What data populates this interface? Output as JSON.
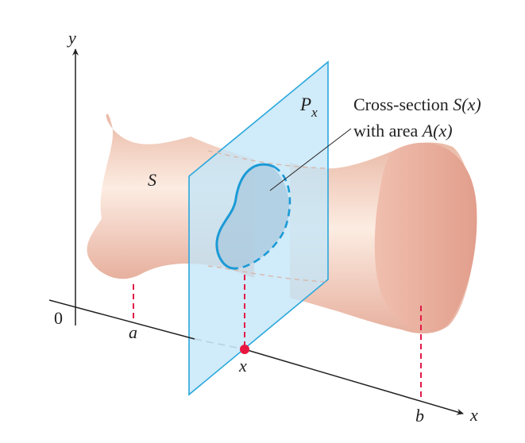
{
  "labels": {
    "y_axis": "y",
    "x_axis": "x",
    "origin": "0",
    "solid": "S",
    "a": "a",
    "b": "b",
    "x_point": "x",
    "plane_P": "P",
    "plane_sub": "x",
    "callout_line1_text": "Cross-section ",
    "callout_line1_math": "S(x)",
    "callout_line2_text": "with area ",
    "callout_line2_math": "A(x)"
  },
  "colors": {
    "solid_light": "#fbe7dc",
    "solid_dark": "#e2a594",
    "solid_end": "#e8a898",
    "plane_fill": "#c3e5f7",
    "plane_edge": "#2aa7dc",
    "section_edge": "#1b9ad6",
    "dashed_red": "#e01b48",
    "point": "#e8173f",
    "axis": "#222222"
  }
}
